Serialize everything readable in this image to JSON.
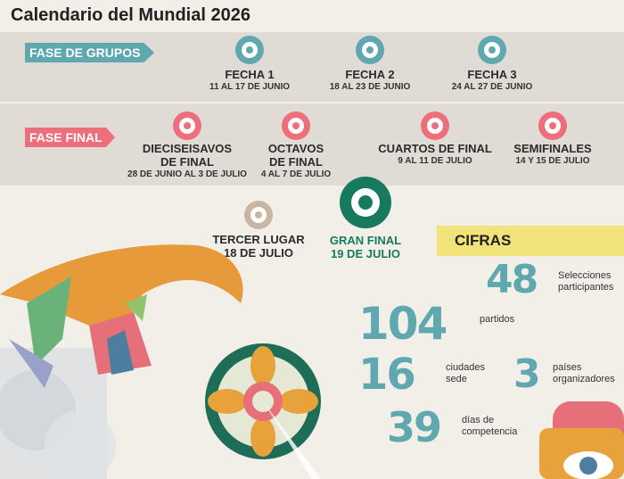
{
  "title": "Calendario del Mundial 2026",
  "phases": {
    "groups_label": "FASE DE GRUPOS",
    "final_label": "FASE FINAL"
  },
  "groups": [
    {
      "label": "FECHA 1",
      "dates": "11 AL 17 DE JUNIO"
    },
    {
      "label": "FECHA 2",
      "dates": "18 AL 23 DE JUNIO"
    },
    {
      "label": "FECHA 3",
      "dates": "24 AL 27 DE JUNIO"
    }
  ],
  "finals": [
    {
      "label": "DIECISEISAVOS\nDE FINAL",
      "l1": "DIECISEISAVOS",
      "l2": "DE FINAL",
      "dates": "28 DE JUNIO AL 3 DE JULIO"
    },
    {
      "l1": "OCTAVOS",
      "l2": "DE FINAL",
      "dates": "4 AL 7 DE JULIO"
    },
    {
      "l1": "CUARTOS DE FINAL",
      "dates": "9 AL 11 DE JULIO"
    },
    {
      "l1": "SEMIFINALES",
      "dates": "14 Y 15 DE JULIO"
    }
  ],
  "third": {
    "label": "TERCER LUGAR",
    "dates": "18 DE JULIO"
  },
  "grand": {
    "label": "GRAN FINAL",
    "dates": "19 DE JULIO"
  },
  "cifras": {
    "heading": "CIFRAS",
    "items": [
      {
        "value": "48",
        "l1": "Selecciones",
        "l2": "participantes"
      },
      {
        "value": "104",
        "l1": "partidos"
      },
      {
        "value": "16",
        "l1": "ciudades",
        "l2": "sede"
      },
      {
        "value": "3",
        "l1": "países",
        "l2": "organizadores"
      },
      {
        "value": "39",
        "l1": "días de",
        "l2": "competencia"
      }
    ]
  },
  "colors": {
    "teal": "#5fa8b0",
    "pink": "#ec6f7b",
    "green": "#177a5f",
    "yellow": "#f2e27a"
  }
}
